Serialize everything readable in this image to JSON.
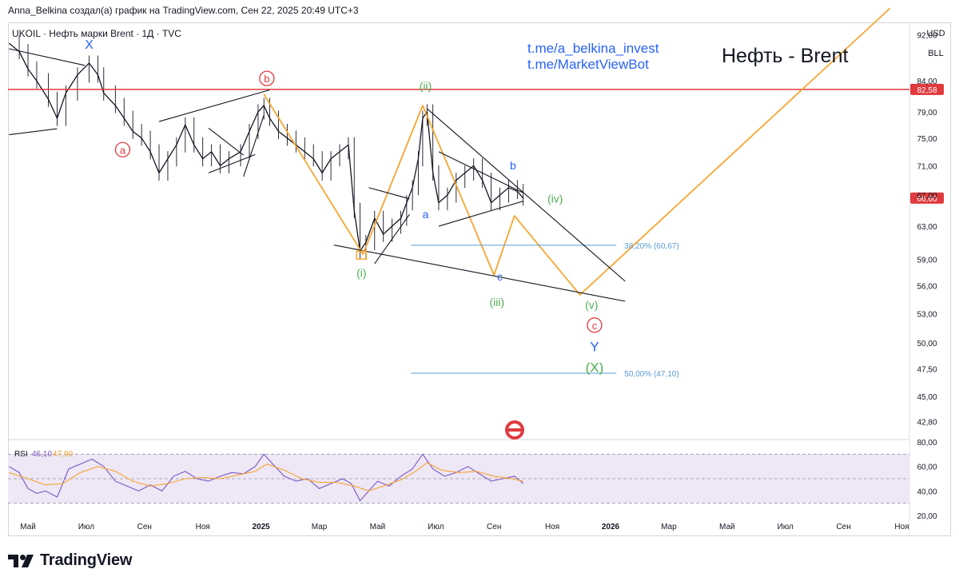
{
  "header": {
    "attribution": "Anna_Belkina создал(а) график на TradingView.com, Сен 22, 2025 20:49 UTC+3"
  },
  "symbol_line": "UKOIL · Нефть марки Brent · 1Д · TVC",
  "links": [
    "t.me/a_belkina_invest",
    "t.me/MarketViewBot"
  ],
  "big_title": "Нефть - Brent",
  "currency": "USD",
  "unit": "BLL",
  "price_badges": {
    "red_level": "82,58",
    "last_price": "66,60"
  },
  "fib_labels": [
    "38,20% (60,67)",
    "50,00% (47,10)"
  ],
  "wave_labels": {
    "X": "X",
    "a_circle": "a",
    "b_circle": "b",
    "c_circle": "c",
    "i": "(i)",
    "ii": "(ii)",
    "iii": "(iii)",
    "iv": "(iv)",
    "v": "(v)",
    "a_small": "a",
    "b_small": "b",
    "c_small": "c",
    "Y": "Y",
    "X_paren": "(X)"
  },
  "rsi_label": "RSI",
  "rsi_values": [
    "46,10",
    "47,90"
  ],
  "logo_text": "TradingView",
  "colors": {
    "orange": "#f7a631",
    "red": "#e03a3e",
    "green": "#4caf50",
    "blue": "#2962ff",
    "fib": "#5b9bd5",
    "rsi_bg": "#ede7f6"
  },
  "chart_data": {
    "type": "line",
    "title": "UKOIL · Нефть марки Brent · 1Д · TVC",
    "xlabel": "",
    "ylabel": "USD / BLL",
    "ylim": [
      41.5,
      94
    ],
    "y_ticks": [
      {
        "v": 92,
        "t": "92,00"
      },
      {
        "v": 84,
        "t": "84,00"
      },
      {
        "v": 79,
        "t": "79,00"
      },
      {
        "v": 75,
        "t": "75,00"
      },
      {
        "v": 71,
        "t": "71,00"
      },
      {
        "v": 67,
        "t": "67,00"
      },
      {
        "v": 63,
        "t": "63,00"
      },
      {
        "v": 59,
        "t": "59,00"
      },
      {
        "v": 56,
        "t": "56,00"
      },
      {
        "v": 53,
        "t": "53,00"
      },
      {
        "v": 50,
        "t": "50,00"
      },
      {
        "v": 47.5,
        "t": "47,50"
      },
      {
        "v": 45,
        "t": "45,00"
      },
      {
        "v": 42.8,
        "t": "42,80"
      }
    ],
    "x_ticks": [
      {
        "m": 0,
        "t": "Май"
      },
      {
        "m": 2,
        "t": "Июл"
      },
      {
        "m": 4,
        "t": "Сен"
      },
      {
        "m": 6,
        "t": "Ноя"
      },
      {
        "m": 8,
        "t": "2025",
        "bold": true
      },
      {
        "m": 10,
        "t": "Мар"
      },
      {
        "m": 12,
        "t": "Май"
      },
      {
        "m": 14,
        "t": "Июл"
      },
      {
        "m": 16,
        "t": "Сен"
      },
      {
        "m": 18,
        "t": "Ноя"
      },
      {
        "m": 20,
        "t": "2026",
        "bold": true
      },
      {
        "m": 22,
        "t": "Мар"
      },
      {
        "m": 24,
        "t": "Май"
      },
      {
        "m": 26,
        "t": "Июл"
      },
      {
        "m": 28,
        "t": "Сен"
      },
      {
        "m": 30,
        "t": "Ноя"
      }
    ],
    "price_path": [
      [
        -0.65,
        90.5
      ],
      [
        -0.3,
        89
      ],
      [
        0,
        86
      ],
      [
        0.3,
        84
      ],
      [
        0.7,
        81
      ],
      [
        1,
        78
      ],
      [
        1.3,
        82
      ],
      [
        1.7,
        85
      ],
      [
        2.1,
        87
      ],
      [
        2.4,
        85
      ],
      [
        2.6,
        82
      ],
      [
        3,
        80
      ],
      [
        3.3,
        78
      ],
      [
        3.6,
        76
      ],
      [
        3.9,
        75
      ],
      [
        4.2,
        73
      ],
      [
        4.5,
        70
      ],
      [
        4.8,
        72
      ],
      [
        5.1,
        74
      ],
      [
        5.4,
        77
      ],
      [
        5.7,
        74
      ],
      [
        6,
        72
      ],
      [
        6.3,
        73
      ],
      [
        6.6,
        71
      ],
      [
        6.9,
        72
      ],
      [
        7.3,
        73
      ],
      [
        7.6,
        76
      ],
      [
        7.9,
        79
      ],
      [
        8.1,
        80
      ],
      [
        8.3,
        78
      ],
      [
        8.6,
        76
      ],
      [
        8.9,
        75
      ],
      [
        9.2,
        74
      ],
      [
        9.5,
        73
      ],
      [
        9.8,
        72
      ],
      [
        10.1,
        70
      ],
      [
        10.4,
        72
      ],
      [
        10.7,
        73
      ],
      [
        11,
        74
      ],
      [
        11.2,
        65
      ],
      [
        11.4,
        60
      ],
      [
        11.6,
        61
      ],
      [
        11.9,
        64
      ],
      [
        12.2,
        62
      ],
      [
        12.5,
        63
      ],
      [
        12.8,
        64
      ],
      [
        13,
        66
      ],
      [
        13.2,
        68
      ],
      [
        13.4,
        72
      ],
      [
        13.55,
        78
      ],
      [
        13.7,
        79
      ],
      [
        13.9,
        70
      ],
      [
        14.1,
        66
      ],
      [
        14.4,
        67
      ],
      [
        14.7,
        69
      ],
      [
        15,
        70
      ],
      [
        15.3,
        71
      ],
      [
        15.6,
        69
      ],
      [
        15.9,
        66
      ],
      [
        16.2,
        67
      ],
      [
        16.5,
        68
      ],
      [
        16.8,
        67.5
      ],
      [
        17,
        66.6
      ]
    ],
    "orange_projection": [
      [
        8.1,
        81.8
      ],
      [
        11.5,
        59.6
      ],
      [
        13.55,
        80
      ],
      [
        16,
        57.2
      ],
      [
        16.7,
        64.3
      ],
      [
        18.95,
        55.0
      ],
      [
        29.6,
        97
      ]
    ],
    "red_level": 82.58,
    "fib_levels": [
      {
        "label": "38,20% (60,67)",
        "value": 60.67,
        "x_start": 13.15,
        "x_end": 20.2
      },
      {
        "label": "50,00% (47,10)",
        "value": 47.1,
        "x_start": 13.15,
        "x_end": 20.2
      }
    ],
    "rsi": {
      "ylim": [
        20,
        80
      ],
      "y_ticks": [
        {
          "v": 80,
          "t": "80,00"
        },
        {
          "v": 60,
          "t": "60,00"
        },
        {
          "v": 40,
          "t": "40,00"
        },
        {
          "v": 20,
          "t": "20,00"
        }
      ],
      "upper": 70,
      "middle": 50,
      "lower": 30,
      "rsi_last": 46.1,
      "ma_last": 47.9,
      "rsi_path": [
        [
          -0.65,
          60
        ],
        [
          -0.3,
          55
        ],
        [
          0,
          42
        ],
        [
          0.3,
          38
        ],
        [
          0.6,
          40
        ],
        [
          1,
          35
        ],
        [
          1.4,
          58
        ],
        [
          1.8,
          62
        ],
        [
          2.2,
          66
        ],
        [
          2.6,
          60
        ],
        [
          3,
          48
        ],
        [
          3.4,
          44
        ],
        [
          3.8,
          40
        ],
        [
          4.2,
          45
        ],
        [
          4.6,
          40
        ],
        [
          5,
          52
        ],
        [
          5.4,
          56
        ],
        [
          5.8,
          50
        ],
        [
          6.2,
          48
        ],
        [
          6.6,
          52
        ],
        [
          7,
          55
        ],
        [
          7.4,
          54
        ],
        [
          7.8,
          60
        ],
        [
          8.1,
          70
        ],
        [
          8.4,
          62
        ],
        [
          8.8,
          52
        ],
        [
          9.2,
          48
        ],
        [
          9.6,
          50
        ],
        [
          10,
          42
        ],
        [
          10.4,
          46
        ],
        [
          10.8,
          50
        ],
        [
          11.1,
          46
        ],
        [
          11.4,
          32
        ],
        [
          11.7,
          40
        ],
        [
          12,
          48
        ],
        [
          12.4,
          44
        ],
        [
          12.8,
          52
        ],
        [
          13.2,
          58
        ],
        [
          13.55,
          70
        ],
        [
          13.9,
          58
        ],
        [
          14.3,
          52
        ],
        [
          14.7,
          55
        ],
        [
          15.1,
          60
        ],
        [
          15.5,
          54
        ],
        [
          15.9,
          48
        ],
        [
          16.3,
          50
        ],
        [
          16.7,
          52
        ],
        [
          17,
          46.1
        ]
      ],
      "ma_path": [
        [
          -0.65,
          55
        ],
        [
          0,
          50
        ],
        [
          0.6,
          45
        ],
        [
          1.2,
          46
        ],
        [
          1.8,
          55
        ],
        [
          2.4,
          60
        ],
        [
          3,
          56
        ],
        [
          3.6,
          48
        ],
        [
          4.2,
          44
        ],
        [
          4.8,
          46
        ],
        [
          5.4,
          50
        ],
        [
          6,
          51
        ],
        [
          6.6,
          50
        ],
        [
          7.2,
          53
        ],
        [
          7.8,
          56
        ],
        [
          8.2,
          62
        ],
        [
          8.8,
          57
        ],
        [
          9.4,
          50
        ],
        [
          10,
          47
        ],
        [
          10.6,
          47
        ],
        [
          11.2,
          44
        ],
        [
          11.7,
          40
        ],
        [
          12.2,
          44
        ],
        [
          12.8,
          49
        ],
        [
          13.3,
          56
        ],
        [
          13.7,
          63
        ],
        [
          14.2,
          57
        ],
        [
          14.8,
          55
        ],
        [
          15.4,
          56
        ],
        [
          16,
          52
        ],
        [
          16.6,
          50
        ],
        [
          17,
          47.9
        ]
      ]
    }
  }
}
